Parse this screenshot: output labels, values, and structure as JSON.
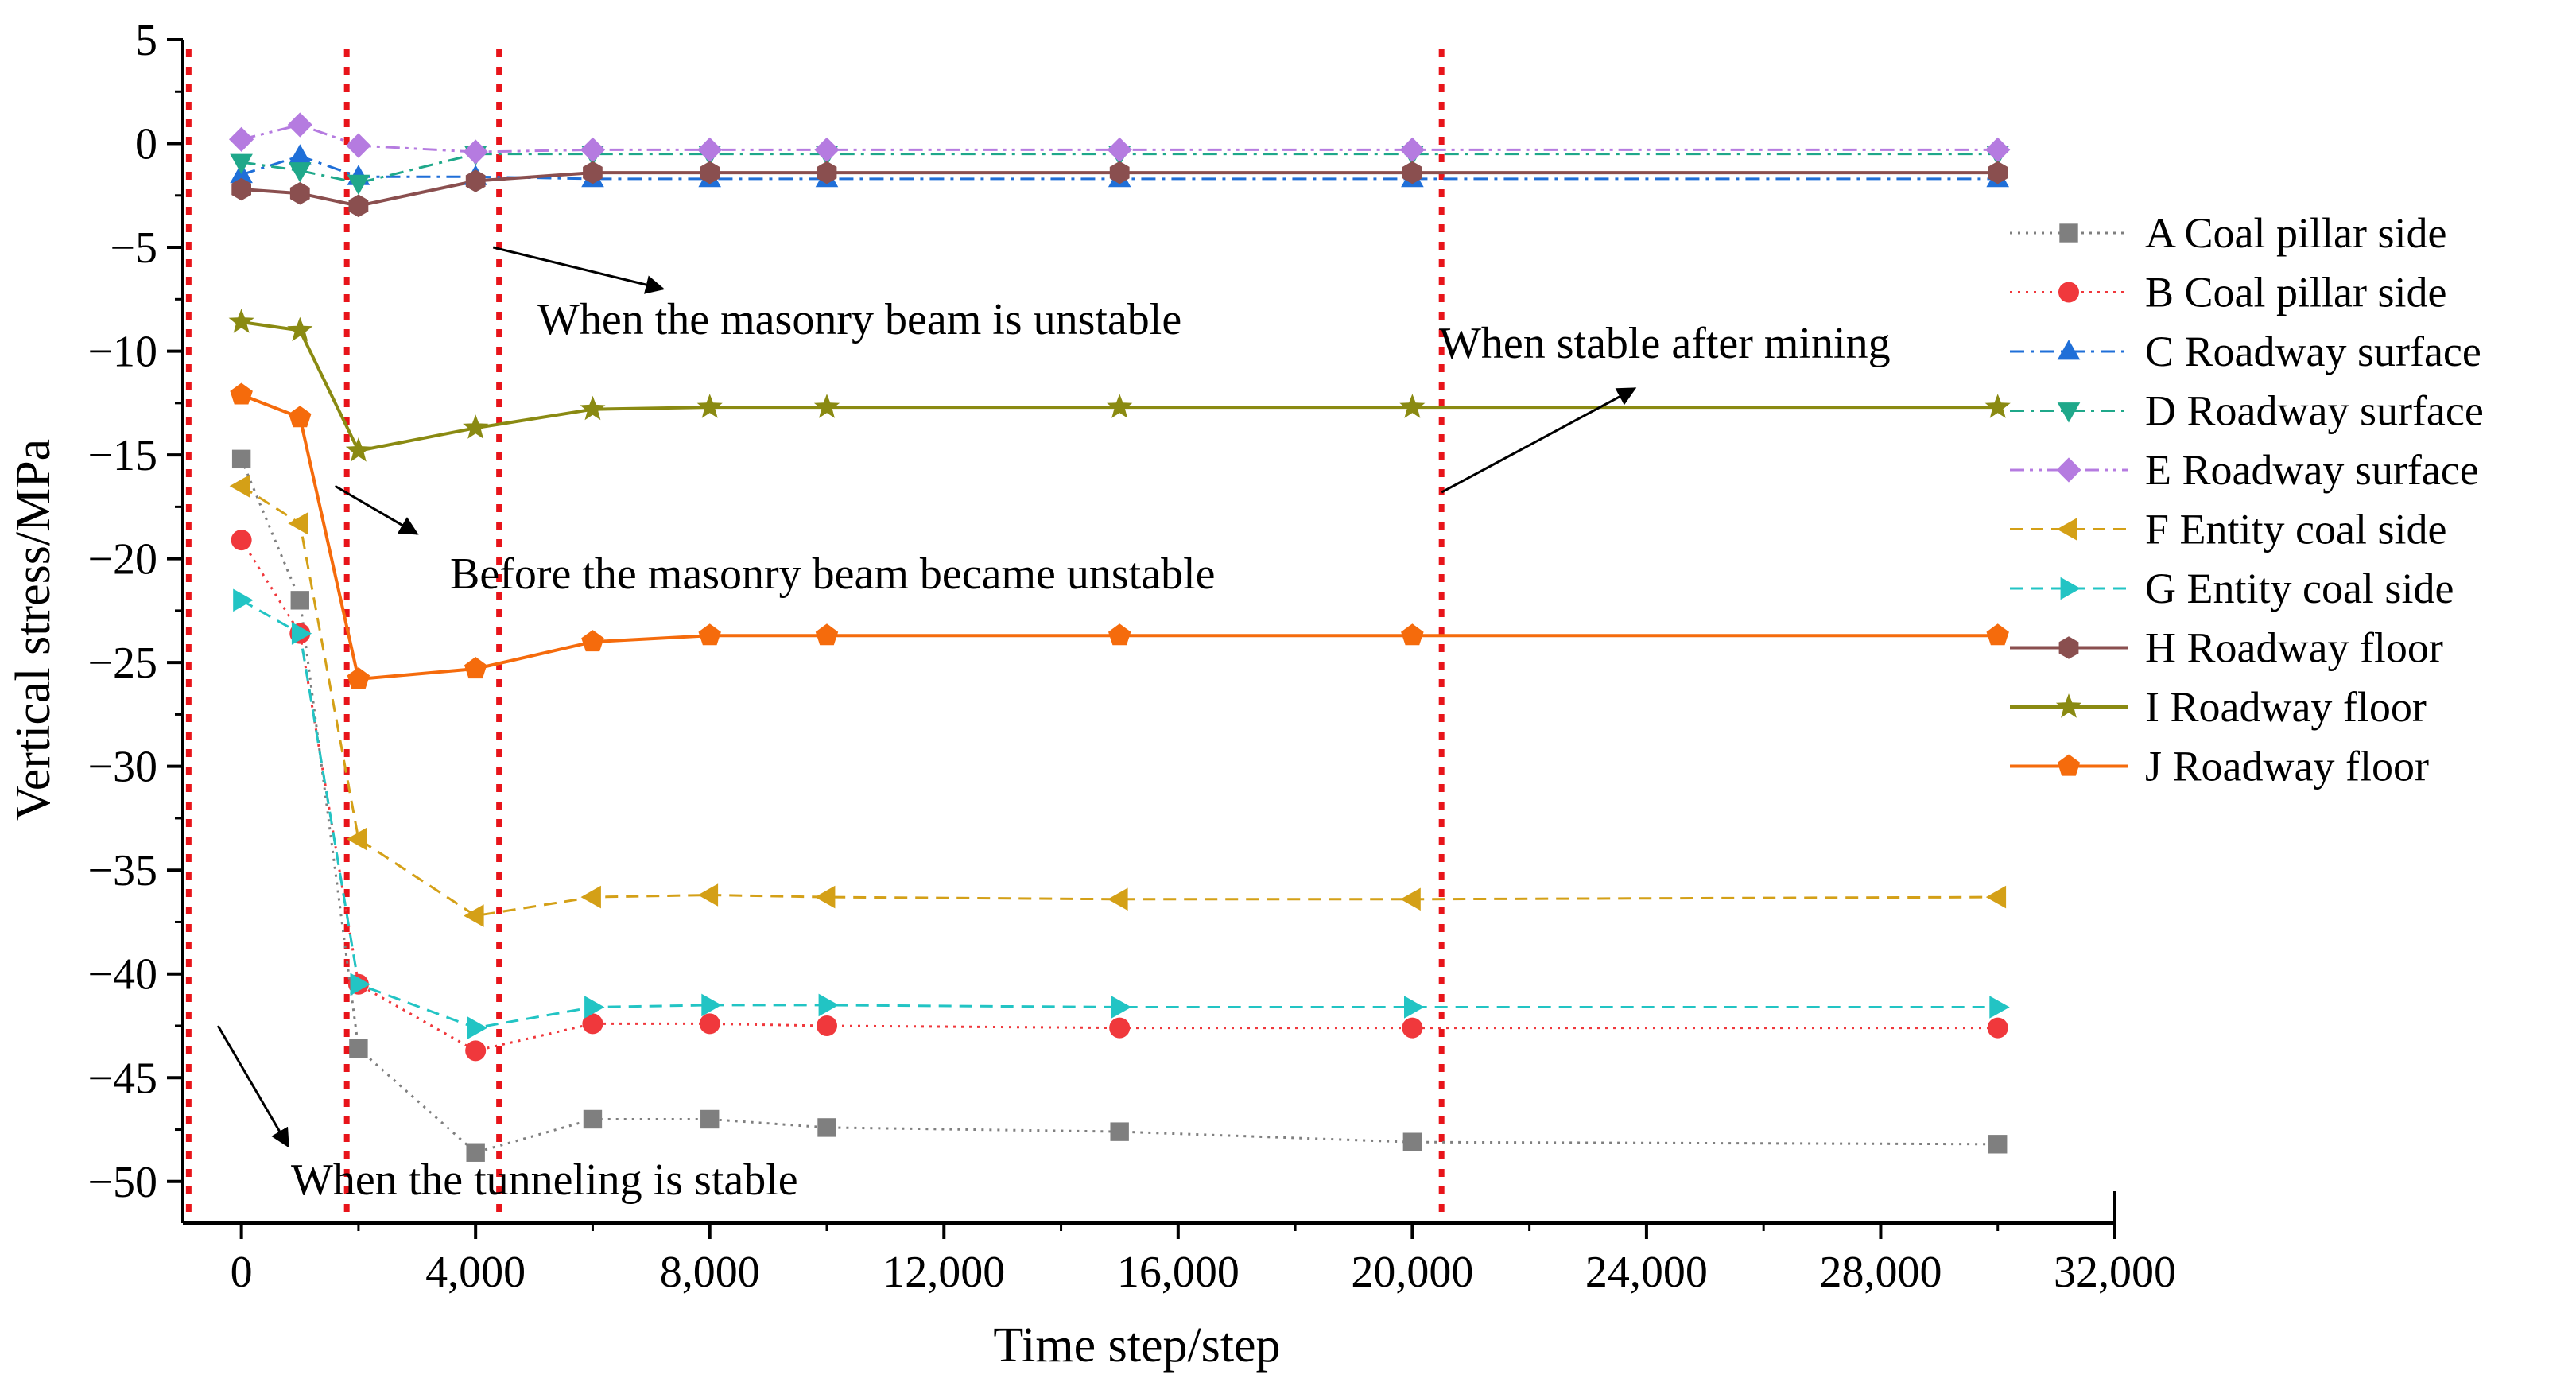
{
  "chart_data": {
    "type": "line",
    "title": "",
    "xlabel": "Time step/step",
    "ylabel": "Vertical stress/MPa",
    "xlim": [
      -1000,
      32000
    ],
    "ylim": [
      -52,
      5
    ],
    "x_ticks": [
      0,
      4000,
      8000,
      12000,
      16000,
      20000,
      24000,
      28000,
      32000
    ],
    "x_tick_labels": [
      "0",
      "4,000",
      "8,000",
      "12,000",
      "16,000",
      "20,000",
      "24,000",
      "28,000",
      "32,000"
    ],
    "y_ticks": [
      5,
      0,
      -5,
      -10,
      -15,
      -20,
      -25,
      -30,
      -35,
      -40,
      -45,
      -50
    ],
    "y_tick_labels": [
      "5",
      "0",
      "−5",
      "−10",
      "−15",
      "−20",
      "−25",
      "−30",
      "−35",
      "−40",
      "−45",
      "−50"
    ],
    "grid": false,
    "legend_position": "right",
    "x": [
      0,
      1000,
      2000,
      4000,
      6000,
      8000,
      10000,
      15000,
      20000,
      30000
    ],
    "series": [
      {
        "name": "A Coal pillar side",
        "color": "#7f7f7f",
        "marker": "square",
        "line": "dot",
        "values": [
          -15.2,
          -22.0,
          -43.6,
          -48.6,
          -47.0,
          -47.0,
          -47.4,
          -47.6,
          -48.1,
          -48.2
        ]
      },
      {
        "name": "B Coal pillar side",
        "color": "#f0383c",
        "marker": "circle",
        "line": "dot",
        "values": [
          -19.1,
          -23.6,
          -40.5,
          -43.7,
          -42.4,
          -42.4,
          -42.5,
          -42.6,
          -42.6,
          -42.6
        ]
      },
      {
        "name": "C Roadway surface",
        "color": "#1f6fd8",
        "marker": "triangle-up",
        "line": "dashdot",
        "values": [
          -1.5,
          -0.6,
          -1.6,
          -1.6,
          -1.7,
          -1.7,
          -1.7,
          -1.7,
          -1.7,
          -1.7
        ]
      },
      {
        "name": "D Roadway surface",
        "color": "#1fa88a",
        "marker": "triangle-down",
        "line": "dashdot",
        "values": [
          -0.9,
          -1.3,
          -1.9,
          -0.5,
          -0.5,
          -0.5,
          -0.5,
          -0.5,
          -0.5,
          -0.5
        ]
      },
      {
        "name": "E Roadway surface",
        "color": "#b57be0",
        "marker": "diamond",
        "line": "dashdotdot",
        "values": [
          0.2,
          0.9,
          -0.1,
          -0.4,
          -0.3,
          -0.3,
          -0.3,
          -0.3,
          -0.3,
          -0.3
        ]
      },
      {
        "name": "F Entity coal side",
        "color": "#d4a017",
        "marker": "triangle-left",
        "line": "dash",
        "values": [
          -16.5,
          -18.3,
          -33.5,
          -37.2,
          -36.3,
          -36.2,
          -36.3,
          -36.4,
          -36.4,
          -36.3
        ]
      },
      {
        "name": "G Entity coal side",
        "color": "#22c4c4",
        "marker": "triangle-right",
        "line": "dash",
        "values": [
          -22.0,
          -23.6,
          -40.5,
          -42.6,
          -41.6,
          -41.5,
          -41.5,
          -41.6,
          -41.6,
          -41.6
        ]
      },
      {
        "name": "H Roadway floor",
        "color": "#8a4f4f",
        "marker": "hexagon",
        "line": "solid",
        "values": [
          -2.2,
          -2.4,
          -3.0,
          -1.8,
          -1.4,
          -1.4,
          -1.4,
          -1.4,
          -1.4,
          -1.4
        ]
      },
      {
        "name": "I Roadway floor",
        "color": "#8a8a12",
        "marker": "star",
        "line": "solid",
        "values": [
          -8.6,
          -9.0,
          -14.8,
          -13.7,
          -12.8,
          -12.7,
          -12.7,
          -12.7,
          -12.7,
          -12.7
        ]
      },
      {
        "name": "J Roadway floor",
        "color": "#f56b0c",
        "marker": "pentagon",
        "line": "solid",
        "values": [
          -12.1,
          -13.2,
          -25.8,
          -25.3,
          -24.0,
          -23.7,
          -23.7,
          -23.7,
          -23.7,
          -23.7
        ]
      }
    ],
    "reference_lines": [
      {
        "x": -900,
        "color": "#e8141a"
      },
      {
        "x": 1800,
        "color": "#e8141a"
      },
      {
        "x": 4400,
        "color": "#e8141a"
      },
      {
        "x": 20500,
        "color": "#e8141a"
      }
    ],
    "annotations": [
      {
        "text": "When the masonry beam is unstable",
        "arrow_from": [
          4300,
          -5.0
        ],
        "arrow_to": [
          7200,
          -7.0
        ]
      },
      {
        "text": "When stable after mining",
        "arrow_from": [
          20500,
          -16.8
        ],
        "arrow_to": [
          23800,
          -11.8
        ]
      },
      {
        "text": "Before the masonry beam became unstable",
        "arrow_from": [
          1600,
          -16.5
        ],
        "arrow_to": [
          3000,
          -18.8
        ]
      },
      {
        "text": "When the tunneling is stable",
        "arrow_from": [
          -400,
          -42.5
        ],
        "arrow_to": [
          800,
          -48.3
        ]
      }
    ]
  }
}
